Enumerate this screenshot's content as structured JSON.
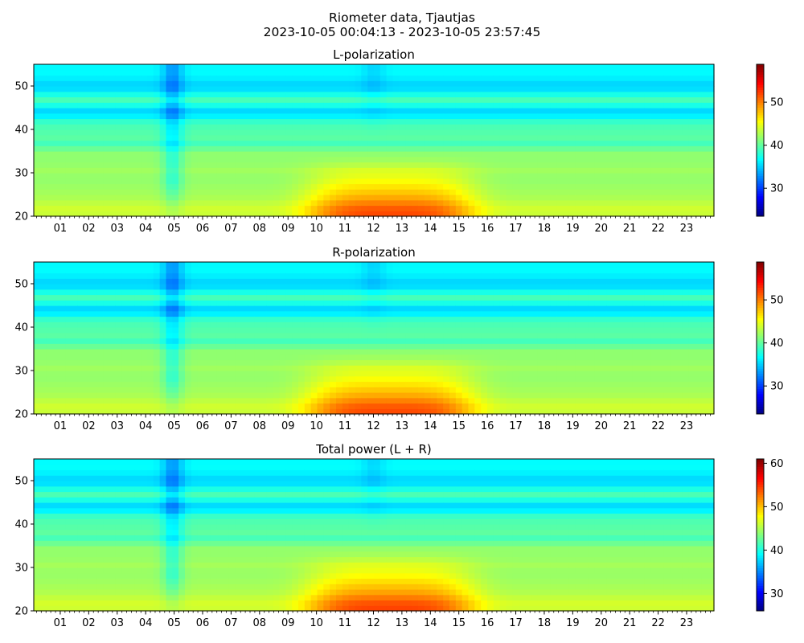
{
  "figure": {
    "title_line1": "Riometer data, Tjautjas",
    "title_line2": "2023-10-05 00:04:13 - 2023-10-05 23:57:45"
  },
  "chart_data": [
    {
      "type": "heatmap",
      "title": "L-polarization",
      "xlabel": "",
      "ylabel": "",
      "x_tick_labels": [
        "01",
        "02",
        "03",
        "04",
        "05",
        "06",
        "07",
        "08",
        "09",
        "10",
        "11",
        "12",
        "13",
        "14",
        "15",
        "16",
        "17",
        "18",
        "19",
        "20",
        "21",
        "22",
        "23"
      ],
      "x_tick_hours": [
        1,
        2,
        3,
        4,
        5,
        6,
        7,
        8,
        9,
        10,
        11,
        12,
        13,
        14,
        15,
        16,
        17,
        18,
        19,
        20,
        21,
        22,
        23
      ],
      "xlim_hours": [
        0.07,
        23.96
      ],
      "y_ticks": [
        20,
        30,
        40,
        50
      ],
      "ylim": [
        20,
        55
      ],
      "colorbar": {
        "range": [
          23.5,
          58.8
        ],
        "ticks": [
          30,
          40,
          50
        ],
        "colormap": "jet"
      }
    },
    {
      "type": "heatmap",
      "title": "R-polarization",
      "xlabel": "",
      "ylabel": "",
      "x_tick_labels": [
        "01",
        "02",
        "03",
        "04",
        "05",
        "06",
        "07",
        "08",
        "09",
        "10",
        "11",
        "12",
        "13",
        "14",
        "15",
        "16",
        "17",
        "18",
        "19",
        "20",
        "21",
        "22",
        "23"
      ],
      "x_tick_hours": [
        1,
        2,
        3,
        4,
        5,
        6,
        7,
        8,
        9,
        10,
        11,
        12,
        13,
        14,
        15,
        16,
        17,
        18,
        19,
        20,
        21,
        22,
        23
      ],
      "xlim_hours": [
        0.07,
        23.96
      ],
      "y_ticks": [
        20,
        30,
        40,
        50
      ],
      "ylim": [
        20,
        55
      ],
      "colorbar": {
        "range": [
          23.5,
          58.8
        ],
        "ticks": [
          30,
          40,
          50
        ],
        "colormap": "jet"
      }
    },
    {
      "type": "heatmap",
      "title": "Total power (L + R)",
      "xlabel": "",
      "ylabel": "",
      "x_tick_labels": [
        "01",
        "02",
        "03",
        "04",
        "05",
        "06",
        "07",
        "08",
        "09",
        "10",
        "11",
        "12",
        "13",
        "14",
        "15",
        "16",
        "17",
        "18",
        "19",
        "20",
        "21",
        "22",
        "23"
      ],
      "x_tick_hours": [
        1,
        2,
        3,
        4,
        5,
        6,
        7,
        8,
        9,
        10,
        11,
        12,
        13,
        14,
        15,
        16,
        17,
        18,
        19,
        20,
        21,
        22,
        23
      ],
      "xlim_hours": [
        0.07,
        23.96
      ],
      "y_ticks": [
        20,
        30,
        40,
        50
      ],
      "ylim": [
        20,
        55
      ],
      "colorbar": {
        "range": [
          26.0,
          61.0
        ],
        "ticks": [
          30,
          40,
          50,
          60
        ],
        "colormap": "jet"
      }
    }
  ]
}
